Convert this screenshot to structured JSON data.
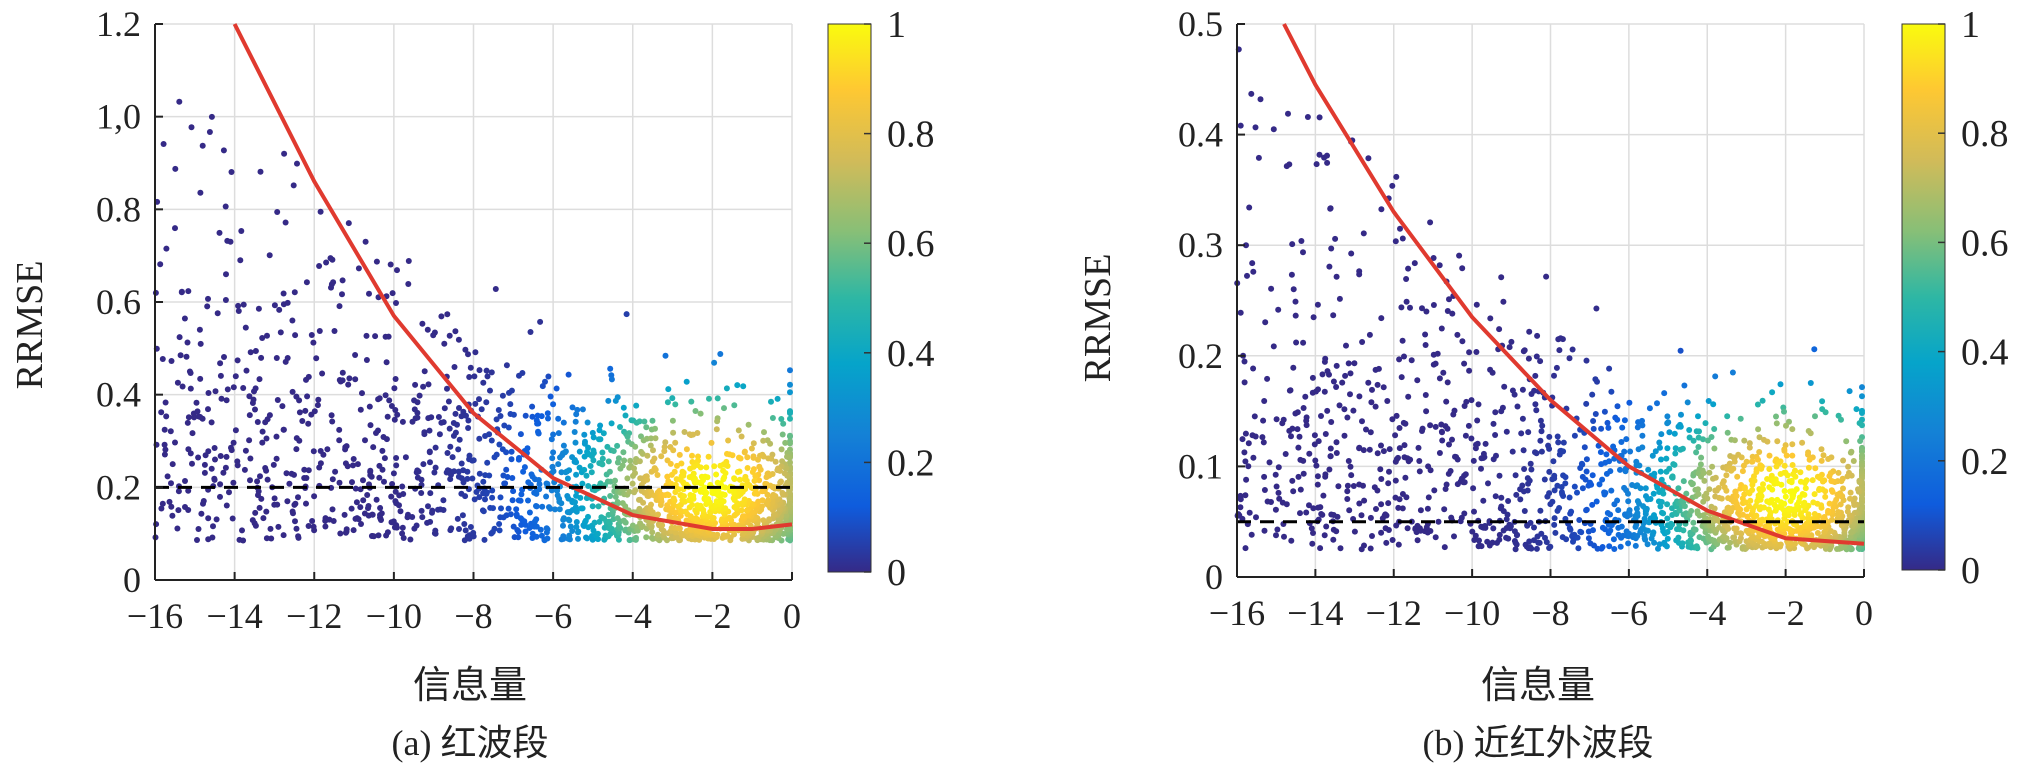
{
  "chart_data": [
    {
      "panel": "a",
      "type": "scatter",
      "caption": "(a) 红波段",
      "xlabel": "信息量",
      "ylabel": "RRMSE",
      "xlim": [
        -16,
        0
      ],
      "ylim": [
        0,
        1.2
      ],
      "xticks": [
        -16,
        -14,
        -12,
        -10,
        -8,
        -6,
        -4,
        -2,
        0
      ],
      "xtick_labels": [
        "−16",
        "−14",
        "−12",
        "−10",
        "−8",
        "−6",
        "−4",
        "−2",
        "0"
      ],
      "yticks": [
        0,
        0.2,
        0.4,
        0.6,
        0.8,
        1.0,
        1.2
      ],
      "ytick_labels": [
        "0",
        "0.2",
        "0.4",
        "0.6",
        "0.8",
        "1,0",
        "1.2"
      ],
      "grid": true,
      "colorbar": {
        "range": [
          0,
          1
        ],
        "ticks": [
          0,
          0.2,
          0.4,
          0.6,
          0.8,
          1
        ],
        "tick_labels": [
          "0",
          "0.2",
          "0.4",
          "0.6",
          "0.8",
          "1"
        ],
        "colormap": "parula"
      },
      "density_peak": {
        "x": -2,
        "y": 0.2
      },
      "fit_curve": {
        "color": "#e03a2f",
        "x": [
          -14,
          -12,
          -10,
          -8,
          -6,
          -4,
          -2,
          -1,
          0
        ],
        "y": [
          1.2,
          0.86,
          0.57,
          0.36,
          0.22,
          0.14,
          0.11,
          0.11,
          0.12
        ]
      },
      "threshold_line": {
        "y": 0.2,
        "style": "dashed",
        "color": "#000000"
      }
    },
    {
      "panel": "b",
      "type": "scatter",
      "caption": "(b) 近红外波段",
      "xlabel": "信息量",
      "ylabel": "RRMSE",
      "xlim": [
        -16,
        0
      ],
      "ylim": [
        0,
        0.5
      ],
      "xticks": [
        -16,
        -14,
        -12,
        -10,
        -8,
        -6,
        -4,
        -2,
        0
      ],
      "xtick_labels": [
        "−16",
        "−14",
        "−12",
        "−10",
        "−8",
        "−6",
        "−4",
        "−2",
        "0"
      ],
      "yticks": [
        0,
        0.1,
        0.2,
        0.3,
        0.4,
        0.5
      ],
      "ytick_labels": [
        "0",
        "0.1",
        "0.2",
        "0.3",
        "0.4",
        "0.5"
      ],
      "grid": true,
      "colorbar": {
        "range": [
          0,
          1
        ],
        "ticks": [
          0,
          0.2,
          0.4,
          0.6,
          0.8,
          1
        ],
        "tick_labels": [
          "0",
          "0.2",
          "0.4",
          "0.6",
          "0.8",
          "1"
        ],
        "colormap": "parula"
      },
      "density_peak": {
        "x": -2,
        "y": 0.075
      },
      "fit_curve": {
        "color": "#e03a2f",
        "x": [
          -14.8,
          -14,
          -12,
          -10,
          -8,
          -6,
          -4,
          -2,
          0
        ],
        "y": [
          0.5,
          0.445,
          0.33,
          0.235,
          0.16,
          0.1,
          0.06,
          0.035,
          0.03
        ]
      },
      "threshold_line": {
        "y": 0.05,
        "style": "dashed",
        "color": "#000000"
      }
    }
  ]
}
